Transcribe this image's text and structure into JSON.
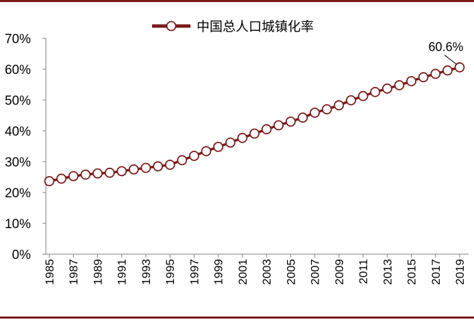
{
  "chart_data": {
    "type": "line",
    "title": "",
    "xlabel": "",
    "ylabel": "",
    "series": [
      {
        "name": "中国总人口城镇化率",
        "x": [
          1985,
          1986,
          1987,
          1988,
          1989,
          1990,
          1991,
          1992,
          1993,
          1994,
          1995,
          1996,
          1997,
          1998,
          1999,
          2000,
          2001,
          2002,
          2003,
          2004,
          2005,
          2006,
          2007,
          2008,
          2009,
          2010,
          2011,
          2012,
          2013,
          2014,
          2015,
          2016,
          2017,
          2018,
          2019
        ],
        "values": [
          23.7,
          24.5,
          25.3,
          25.8,
          26.2,
          26.4,
          26.9,
          27.5,
          28.0,
          28.5,
          29.0,
          30.5,
          31.9,
          33.4,
          34.8,
          36.2,
          37.7,
          39.1,
          40.5,
          41.8,
          43.0,
          44.3,
          45.9,
          47.0,
          48.3,
          49.9,
          51.3,
          52.6,
          53.7,
          54.8,
          56.1,
          57.4,
          58.5,
          59.6,
          60.6
        ]
      }
    ],
    "x_tick_labels": [
      "1985",
      "1987",
      "1989",
      "1991",
      "1993",
      "1995",
      "1997",
      "1999",
      "2001",
      "2003",
      "2005",
      "2007",
      "2009",
      "2011",
      "2013",
      "2015",
      "2017",
      "2019"
    ],
    "y_tick_labels": [
      "0%",
      "10%",
      "20%",
      "30%",
      "40%",
      "50%",
      "60%",
      "70%"
    ],
    "ylim": [
      0,
      70
    ],
    "xlim": [
      1985,
      2019
    ],
    "annotation": {
      "text": "60.6%",
      "year": 2019,
      "value": 60.6
    },
    "legend_position": "top",
    "grid": false,
    "colors": {
      "line": "#7a1a1a",
      "marker_fill": "#ffffff",
      "frame_rule": "#7a1a1a"
    }
  }
}
